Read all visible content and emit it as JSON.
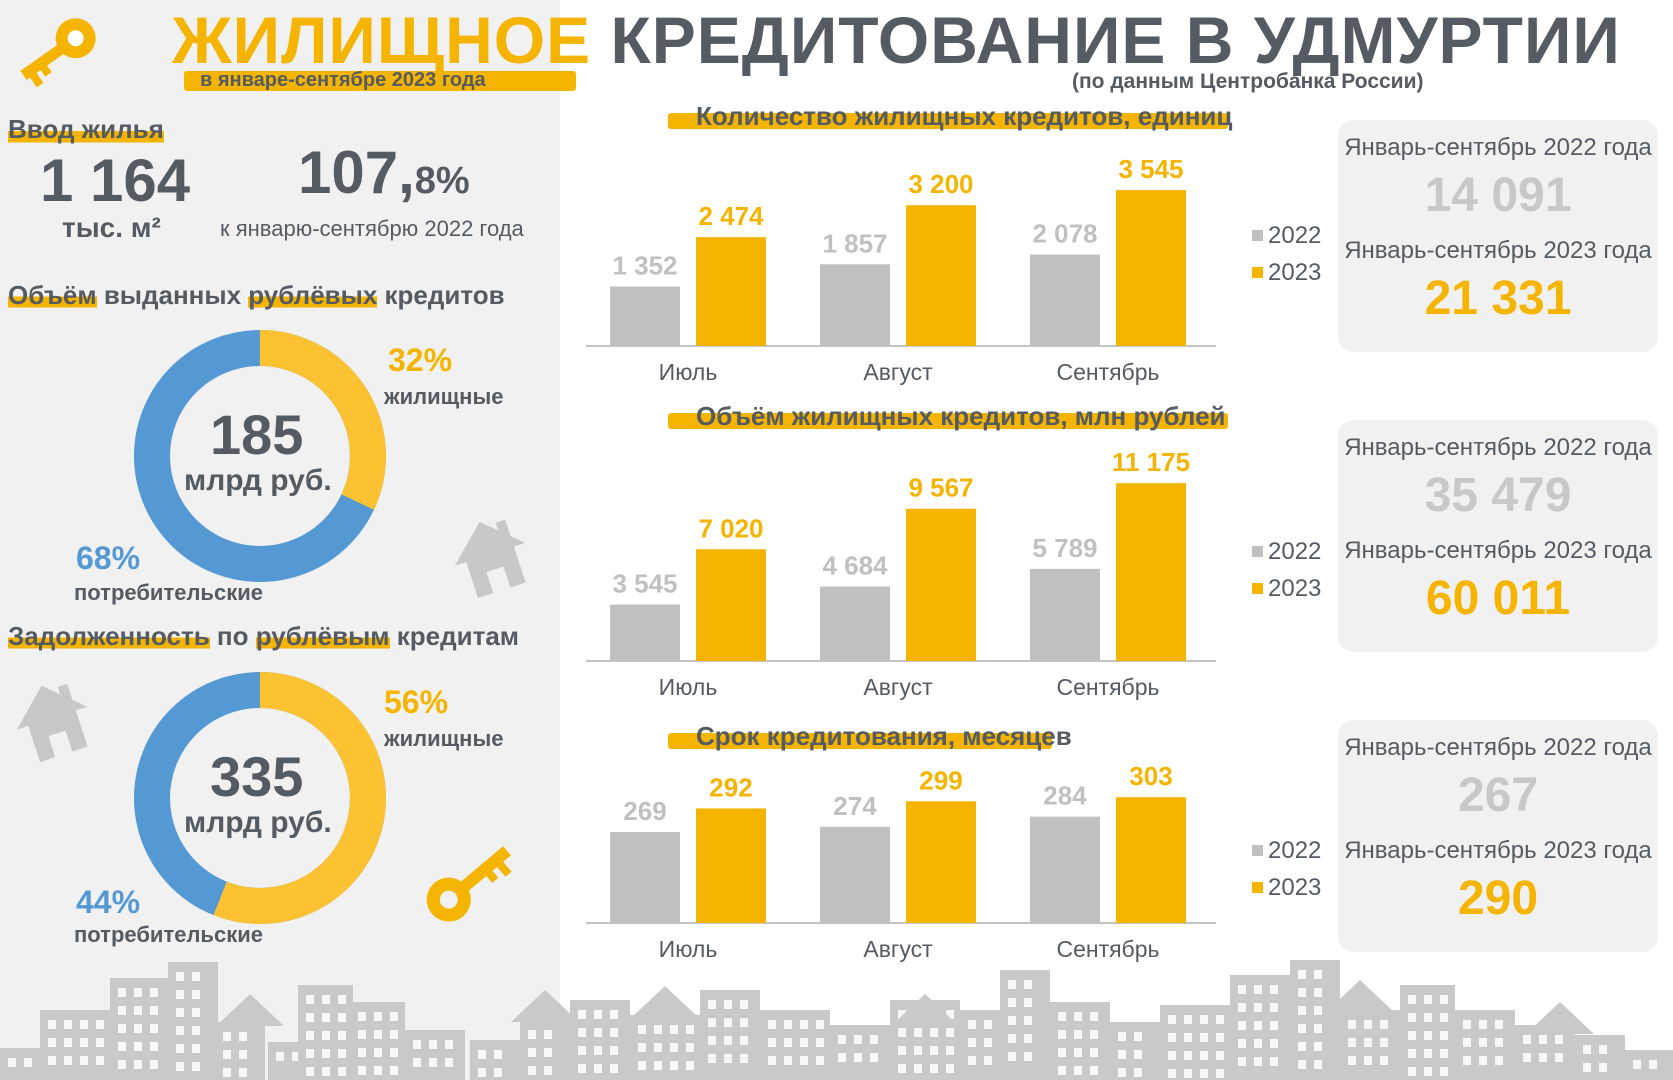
{
  "header": {
    "title_highlight": "ЖИЛИЩНОЕ",
    "title_rest": "КРЕДИТОВАНИЕ В УДМУРТИИ",
    "subtitle": "в январе-сентябре 2023 года",
    "source": "(по данным Центробанка России)"
  },
  "housing": {
    "heading": "Ввод жилья",
    "value": "1 164",
    "unit": "тыс. м²",
    "pct_main": "107,",
    "pct_tail": "8%",
    "pct_note": "к январю-сентябрю 2022 года"
  },
  "loans_issued": {
    "heading_parts": [
      "Объём",
      " выданных ",
      "рублёвых",
      " кредитов"
    ],
    "total": "185",
    "total_unit": "млрд руб.",
    "housing_pct": "32%",
    "housing_label": "жилищные",
    "consumer_pct": "68%",
    "consumer_label": "потребительские",
    "housing_share": 32
  },
  "debt": {
    "heading_parts": [
      "Задолженность",
      " по ",
      "рублёвым",
      " кредитам"
    ],
    "total": "335",
    "total_unit": "млрд руб.",
    "housing_pct": "56%",
    "housing_label": "жилищные",
    "consumer_pct": "44%",
    "consumer_label": "потребительские",
    "housing_share": 56
  },
  "colors": {
    "yellow": "#f5b400",
    "gray_bar": "#c0c0c0",
    "blue": "#5499d3",
    "donut_yellow": "#fcc231",
    "text": "#555b63"
  },
  "legend": {
    "y2022": "2022",
    "y2023": "2023"
  },
  "summaries": [
    {
      "label_2022": "Январь-сентябрь 2022 года",
      "value_2022": "14 091",
      "label_2023": "Январь-сентябрь 2023 года",
      "value_2023": "21 331"
    },
    {
      "label_2022": "Январь-сентябрь 2022 года",
      "value_2022": "35 479",
      "label_2023": "Январь-сентябрь 2023 года",
      "value_2023": "60 011"
    },
    {
      "label_2022": "Январь-сентябрь 2022 года",
      "value_2022": "267",
      "label_2023": "Январь-сентябрь 2023 года",
      "value_2023": "290"
    }
  ],
  "chart_data": [
    {
      "type": "bar",
      "title": "Количество жилищных кредитов, единиц",
      "categories": [
        "Июль",
        "Август",
        "Сентябрь"
      ],
      "series": [
        {
          "name": "2022",
          "values": [
            1352,
            1857,
            2078
          ],
          "labels": [
            "1 352",
            "1 857",
            "2 078"
          ]
        },
        {
          "name": "2023",
          "values": [
            2474,
            3200,
            3545
          ],
          "labels": [
            "2 474",
            "3 200",
            "3 545"
          ]
        }
      ],
      "ylim": [
        0,
        4000
      ]
    },
    {
      "type": "bar",
      "title": "Объём жилищных кредитов, млн рублей",
      "categories": [
        "Июль",
        "Август",
        "Сентябрь"
      ],
      "series": [
        {
          "name": "2022",
          "values": [
            3545,
            4684,
            5789
          ],
          "labels": [
            "3 545",
            "4 684",
            "5 789"
          ]
        },
        {
          "name": "2023",
          "values": [
            7020,
            9567,
            11175
          ],
          "labels": [
            "7 020",
            "9 567",
            "11 175"
          ]
        }
      ],
      "ylim": [
        0,
        12000
      ]
    },
    {
      "type": "bar",
      "title": "Срок кредитования, месяцев",
      "categories": [
        "Июль",
        "Август",
        "Сентябрь"
      ],
      "series": [
        {
          "name": "2022",
          "values": [
            269,
            274,
            284
          ],
          "labels": [
            "269",
            "274",
            "284"
          ]
        },
        {
          "name": "2023",
          "values": [
            292,
            299,
            303
          ],
          "labels": [
            "292",
            "299",
            "303"
          ]
        }
      ],
      "ylim": [
        180,
        310
      ]
    }
  ]
}
